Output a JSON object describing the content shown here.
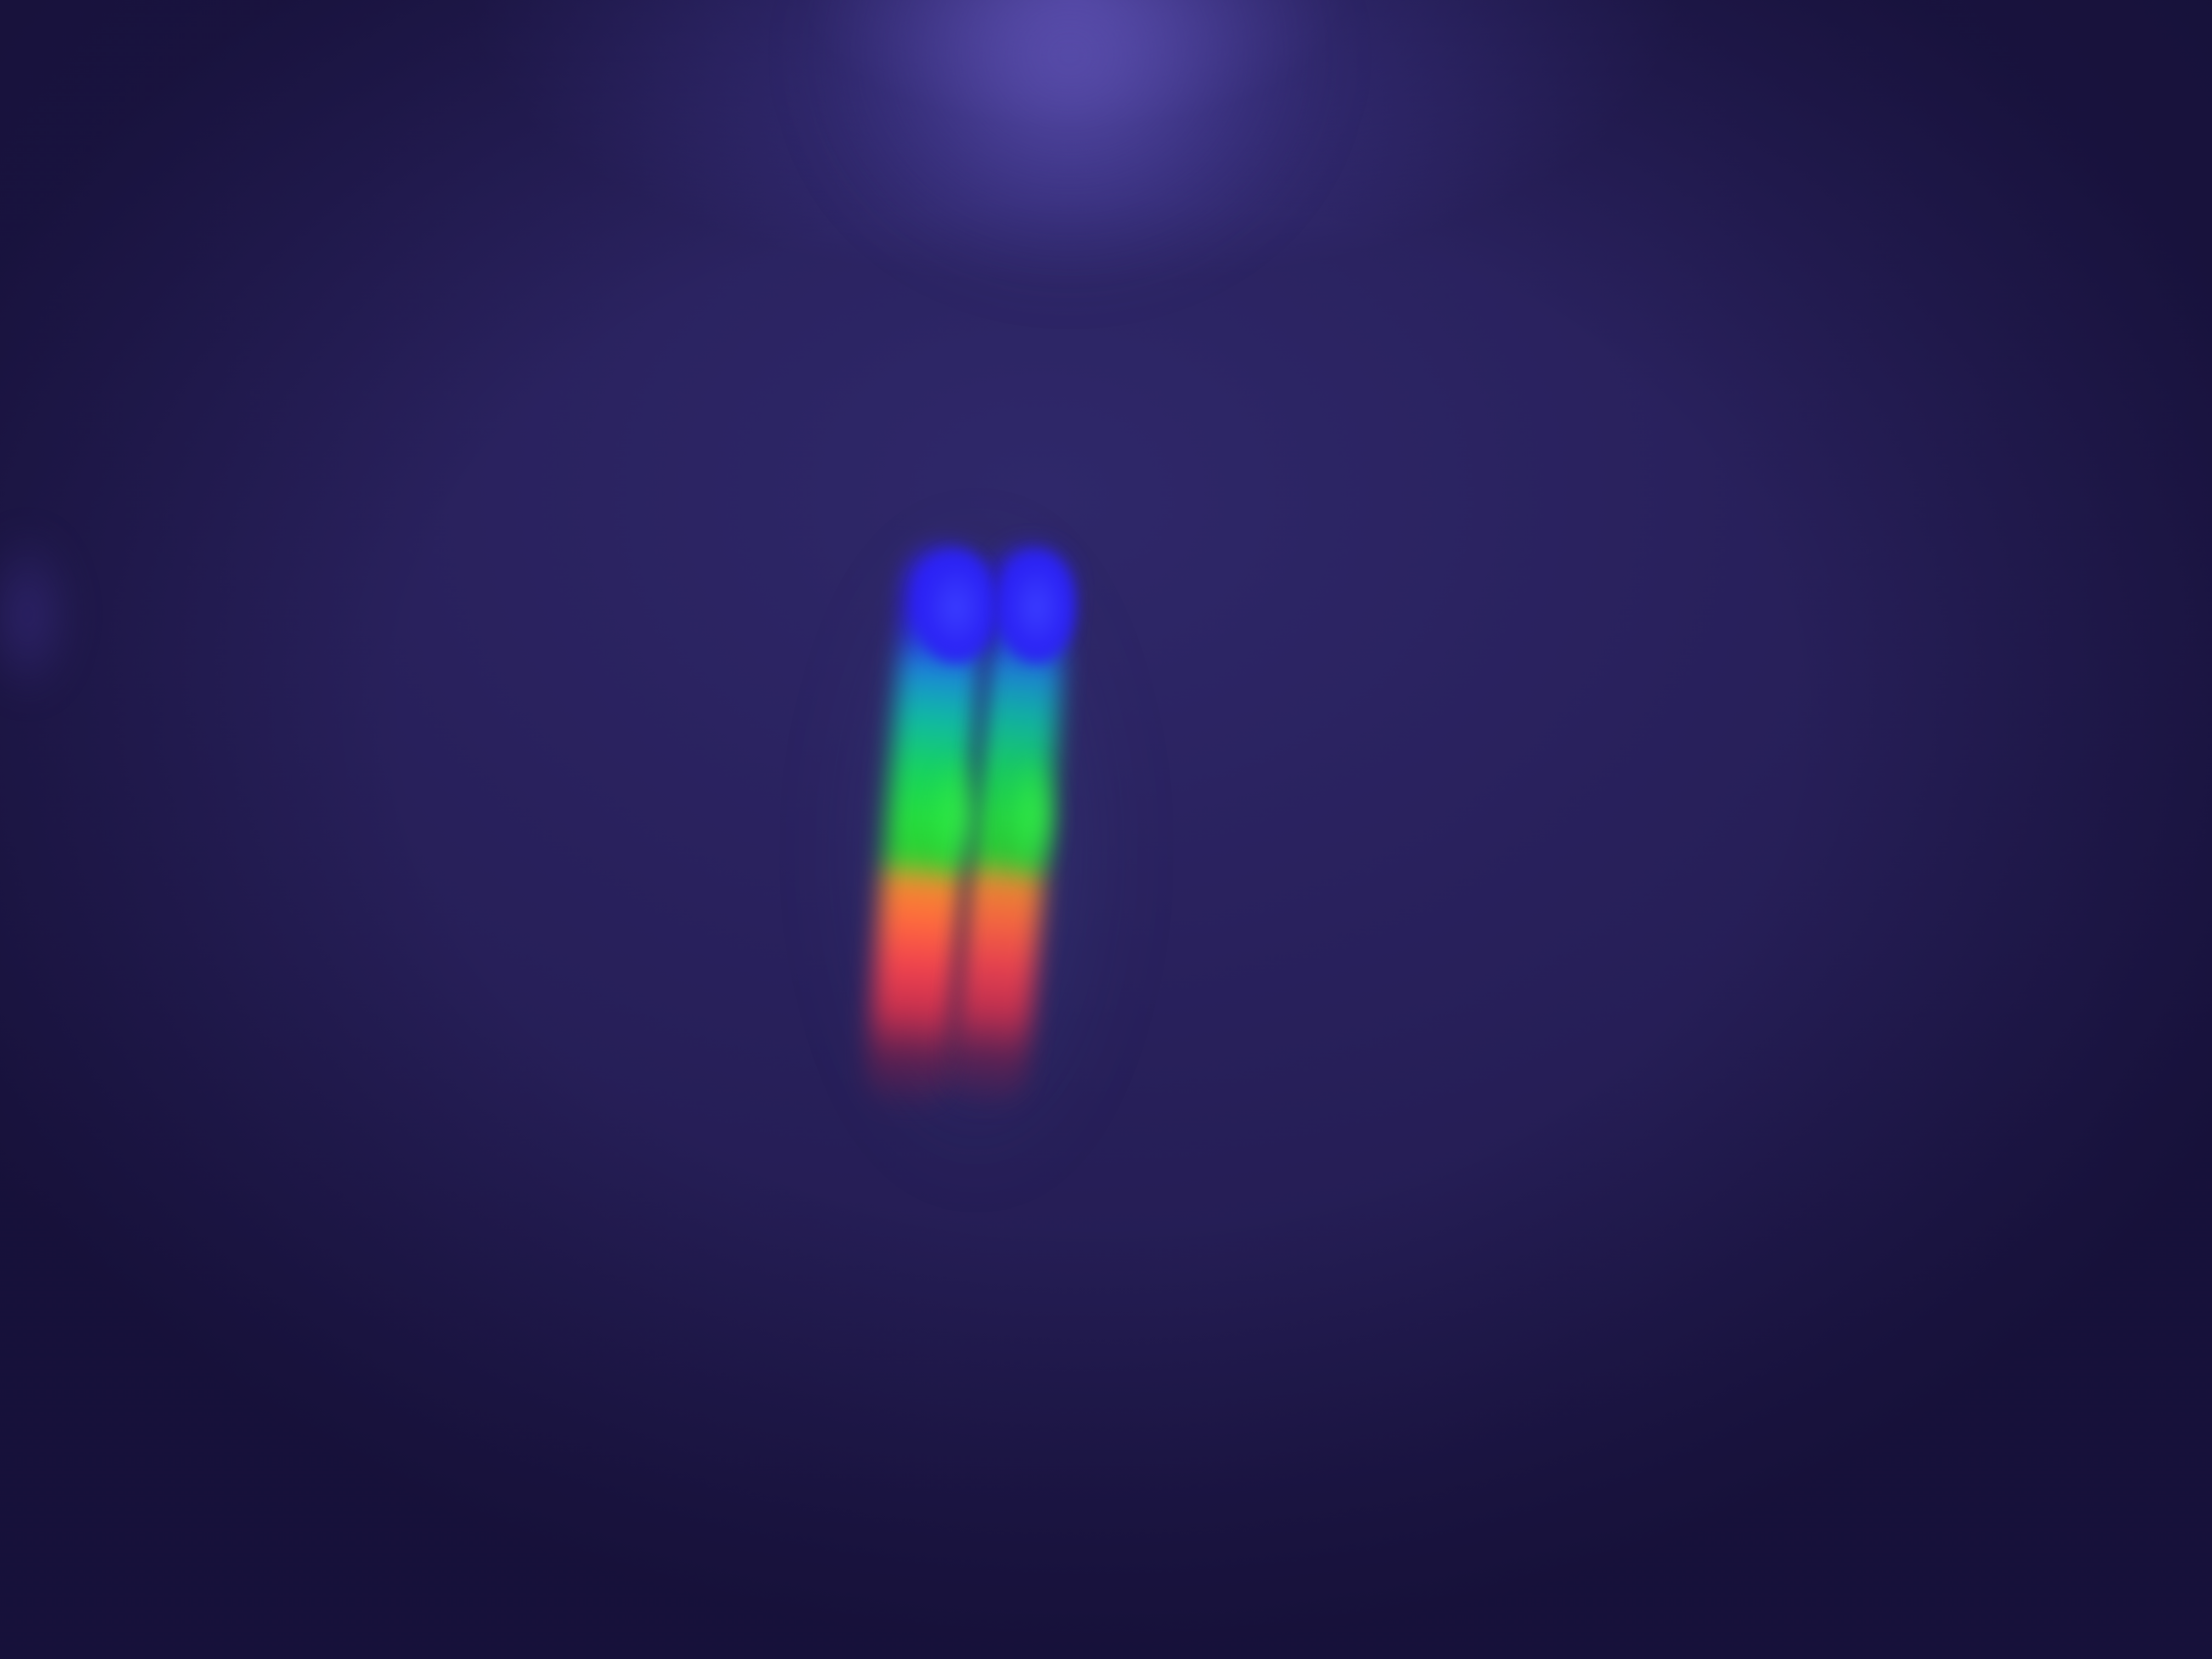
{
  "scene": {
    "colors": {
      "background": "#251d55",
      "top_glow": "#6e5fd7",
      "spectrum_blue": "#2f22ff",
      "spectrum_green": "#26de3e",
      "spectrum_orange": "#ff6a3e",
      "spectrum_red": "#f0434e"
    },
    "spectrum_bands": [
      "blue",
      "cyan",
      "green",
      "orange",
      "red"
    ],
    "stripe_count": 2
  }
}
